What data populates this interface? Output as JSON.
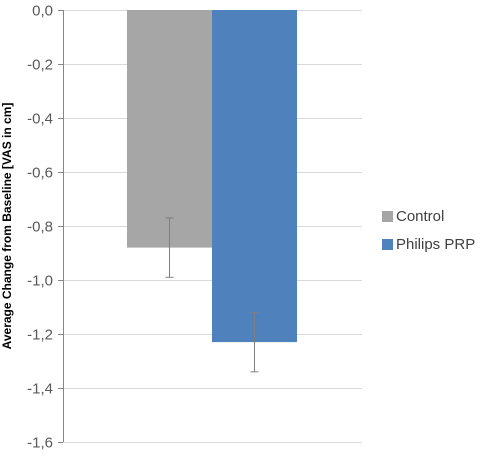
{
  "chart_data": {
    "type": "bar",
    "ylabel": "Average Change from Baseline [VAS in cm]",
    "ylim": [
      -1.6,
      0.0
    ],
    "yticks": [
      "0,0",
      "-0,2",
      "-0,4",
      "-0,6",
      "-0,8",
      "-1,0",
      "-1,2",
      "-1,4",
      "-1,6"
    ],
    "grid": true,
    "legend_position": "right",
    "series": [
      {
        "name": "Control",
        "value": -0.88,
        "error": 0.11,
        "color": "#a6a6a6"
      },
      {
        "name": "Philips PRP",
        "value": -1.23,
        "error": 0.11,
        "color": "#4f81bd"
      }
    ]
  }
}
